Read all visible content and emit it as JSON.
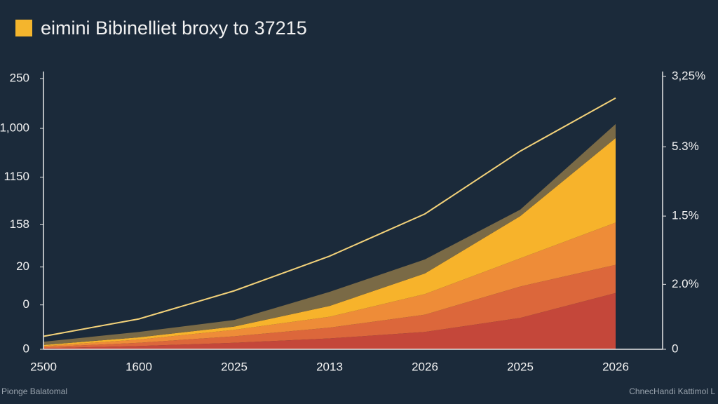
{
  "chart_data": {
    "type": "area",
    "title": "eimini Bibinelliet broxy to 37215",
    "categories": [
      "2500",
      "1600",
      "2025",
      "2013",
      "2026",
      "2025",
      "2026"
    ],
    "stacked": true,
    "series": [
      {
        "color": "#c4473a",
        "values": [
          1,
          3,
          6,
          10,
          16,
          29,
          52
        ]
      },
      {
        "color": "#dc673b",
        "values": [
          1,
          3,
          6,
          10,
          16,
          29,
          26
        ]
      },
      {
        "color": "#ee8c38",
        "values": [
          1,
          3,
          6,
          10,
          19,
          26,
          39
        ]
      },
      {
        "color": "#f7b32b",
        "values": [
          1,
          2,
          3,
          10,
          19,
          39,
          78
        ]
      },
      {
        "color": "#7a6a46",
        "values": [
          3,
          5,
          6,
          13,
          13,
          6,
          13
        ]
      }
    ],
    "line": {
      "color": "#f3d27a",
      "values": [
        12,
        28,
        54,
        86,
        125,
        183,
        232
      ]
    },
    "ylim": [
      0,
      250
    ],
    "yticks": [
      0,
      {
        "value": 41,
        "label": "0"
      },
      {
        "value": 76,
        "label": "20"
      },
      {
        "value": 115,
        "label": "158"
      },
      {
        "value": 159,
        "label": "1150"
      },
      {
        "value": 204,
        "label": "1,000"
      },
      250
    ],
    "y2lim": [
      0,
      250
    ],
    "y2ticks": [
      0,
      {
        "value": 60,
        "label": "2.0%"
      },
      {
        "value": 123,
        "label": "1.5%"
      },
      {
        "value": 187,
        "label": "5.3%"
      },
      {
        "value": 252,
        "label": "3,25%"
      }
    ],
    "footnotes": [
      "Pionge Balatomal",
      "ChnecHandi Kattimol L"
    ]
  }
}
